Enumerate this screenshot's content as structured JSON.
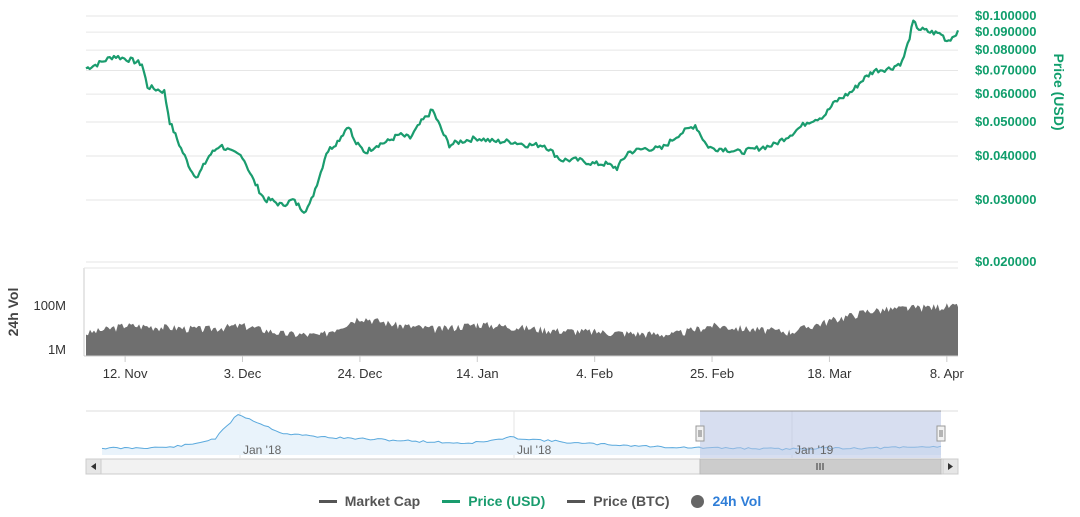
{
  "chart_data": {
    "type": "line",
    "price_axis": {
      "title": "Price (USD)",
      "scale": "log",
      "ylim": [
        0.02,
        0.1
      ],
      "ticks": [
        "$0.100000",
        "$0.090000",
        "$0.080000",
        "$0.070000",
        "$0.060000",
        "$0.050000",
        "$0.040000",
        "$0.030000",
        "$0.020000"
      ],
      "tick_values": [
        0.1,
        0.09,
        0.08,
        0.07,
        0.06,
        0.05,
        0.04,
        0.03,
        0.02
      ]
    },
    "volume_axis": {
      "title": "24h Vol",
      "ticks": [
        "100M",
        "1M"
      ]
    },
    "x_ticks": [
      "12. Nov",
      "3. Dec",
      "24. Dec",
      "14. Jan",
      "4. Feb",
      "25. Feb",
      "18. Mar",
      "8. Apr"
    ],
    "x_range": [
      "2018-11-05",
      "2019-04-10"
    ],
    "series": [
      {
        "name": "Price (USD)",
        "color": "#1a9c6e",
        "x": [
          "2018-11-05",
          "2018-11-07",
          "2018-11-10",
          "2018-11-13",
          "2018-11-15",
          "2018-11-16",
          "2018-11-19",
          "2018-11-20",
          "2018-11-22",
          "2018-11-24",
          "2018-11-25",
          "2018-11-27",
          "2018-11-29",
          "2018-12-01",
          "2018-12-03",
          "2018-12-05",
          "2018-12-07",
          "2018-12-08",
          "2018-12-10",
          "2018-12-12",
          "2018-12-14",
          "2018-12-15",
          "2018-12-17",
          "2018-12-18",
          "2018-12-20",
          "2018-12-22",
          "2018-12-23",
          "2018-12-25",
          "2018-12-27",
          "2018-12-29",
          "2018-12-31",
          "2019-01-02",
          "2019-01-04",
          "2019-01-06",
          "2019-01-08",
          "2019-01-09",
          "2019-01-11",
          "2019-01-14",
          "2019-01-17",
          "2019-01-20",
          "2019-01-23",
          "2019-01-26",
          "2019-01-29",
          "2019-02-01",
          "2019-02-04",
          "2019-02-06",
          "2019-02-08",
          "2019-02-10",
          "2019-02-13",
          "2019-02-16",
          "2019-02-19",
          "2019-02-22",
          "2019-02-24",
          "2019-02-25",
          "2019-02-27",
          "2019-03-02",
          "2019-03-05",
          "2019-03-08",
          "2019-03-11",
          "2019-03-14",
          "2019-03-17",
          "2019-03-19",
          "2019-03-22",
          "2019-03-24",
          "2019-03-26",
          "2019-03-29",
          "2019-03-31",
          "2019-04-01",
          "2019-04-02",
          "2019-04-03",
          "2019-04-05",
          "2019-04-07",
          "2019-04-08",
          "2019-04-09",
          "2019-04-10"
        ],
        "values": [
          0.071,
          0.073,
          0.077,
          0.075,
          0.073,
          0.063,
          0.061,
          0.05,
          0.042,
          0.036,
          0.035,
          0.04,
          0.043,
          0.041,
          0.04,
          0.034,
          0.03,
          0.03,
          0.029,
          0.03,
          0.028,
          0.029,
          0.036,
          0.041,
          0.044,
          0.049,
          0.044,
          0.041,
          0.043,
          0.044,
          0.046,
          0.045,
          0.05,
          0.054,
          0.046,
          0.043,
          0.044,
          0.045,
          0.044,
          0.044,
          0.043,
          0.043,
          0.039,
          0.039,
          0.038,
          0.038,
          0.037,
          0.041,
          0.042,
          0.042,
          0.046,
          0.049,
          0.043,
          0.042,
          0.042,
          0.041,
          0.042,
          0.043,
          0.046,
          0.05,
          0.052,
          0.057,
          0.061,
          0.066,
          0.07,
          0.071,
          0.074,
          0.083,
          0.096,
          0.092,
          0.09,
          0.089,
          0.085,
          0.087,
          0.091
        ]
      },
      {
        "name": "24h Vol",
        "color": "#777777",
        "x": [
          "2018-11-05",
          "2018-11-12",
          "2018-11-19",
          "2018-11-26",
          "2018-12-03",
          "2018-12-10",
          "2018-12-17",
          "2018-12-24",
          "2018-12-31",
          "2019-01-07",
          "2019-01-14",
          "2019-01-21",
          "2019-01-28",
          "2019-02-04",
          "2019-02-11",
          "2019-02-18",
          "2019-02-25",
          "2019-03-04",
          "2019-03-11",
          "2019-03-18",
          "2019-03-25",
          "2019-04-01",
          "2019-04-08",
          "2019-04-10"
        ],
        "values": [
          5000000,
          12000000,
          10000000,
          8000000,
          12000000,
          5000000,
          4000000,
          30000000,
          12000000,
          8000000,
          14000000,
          10000000,
          7000000,
          6000000,
          5000000,
          4500000,
          12000000,
          8000000,
          6000000,
          20000000,
          60000000,
          80000000,
          100000000,
          90000000
        ]
      }
    ],
    "navigator": {
      "ticks": [
        "Jan '18",
        "Jul '18",
        "Jan '19"
      ],
      "x_range": [
        "2017-09-01",
        "2019-04-10"
      ],
      "values": [
        0.05,
        0.05,
        0.055,
        0.06,
        0.09,
        0.15,
        0.4,
        0.3,
        0.2,
        0.18,
        0.16,
        0.15,
        0.14,
        0.13,
        0.12,
        0.11,
        0.1,
        0.12,
        0.16,
        0.14,
        0.12,
        0.1,
        0.09,
        0.08,
        0.07,
        0.06,
        0.055,
        0.05,
        0.05,
        0.045,
        0.04,
        0.045,
        0.05,
        0.05,
        0.05,
        0.055,
        0.06,
        0.07
      ]
    },
    "legend": [
      "Market Cap",
      "Price (USD)",
      "Price (BTC)",
      "24h Vol"
    ]
  },
  "legend_items": [
    {
      "label": "Market Cap",
      "color": "#555555",
      "active": false
    },
    {
      "label": "Price (USD)",
      "color": "#1a9c6e",
      "active": true
    },
    {
      "label": "Price (BTC)",
      "color": "#555555",
      "active": false
    },
    {
      "label": "24h Vol",
      "color": "#555555",
      "active": true
    }
  ]
}
